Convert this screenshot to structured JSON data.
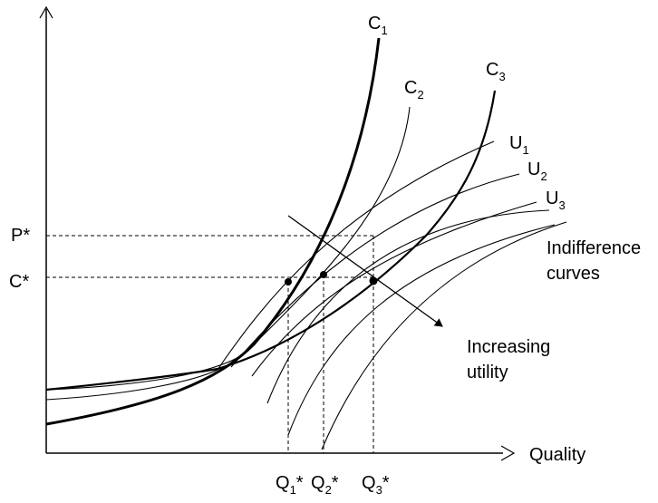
{
  "diagram": {
    "axes": {
      "x_label": "Quality",
      "y_label": ""
    },
    "cost_curves": [
      {
        "name": "C",
        "index": "1",
        "weight": "thick"
      },
      {
        "name": "C",
        "index": "2",
        "weight": "thin"
      },
      {
        "name": "C",
        "index": "3",
        "weight": "thick"
      }
    ],
    "utility_curves": [
      {
        "name": "U",
        "index": "1"
      },
      {
        "name": "U",
        "index": "2"
      },
      {
        "name": "U",
        "index": "3"
      }
    ],
    "y_levels": [
      {
        "label": "P*"
      },
      {
        "label": "C*"
      }
    ],
    "x_levels": [
      {
        "name": "Q",
        "index": "1",
        "suffix": "*"
      },
      {
        "name": "Q",
        "index": "2",
        "suffix": "*"
      },
      {
        "name": "Q",
        "index": "3",
        "suffix": "*"
      }
    ],
    "annotations": {
      "indifference_line1": "Indifference",
      "indifference_line2": "curves",
      "increasing_line1": "Increasing",
      "increasing_line2": "utility"
    },
    "colors": {
      "ink": "#000000",
      "background": "#ffffff"
    }
  }
}
